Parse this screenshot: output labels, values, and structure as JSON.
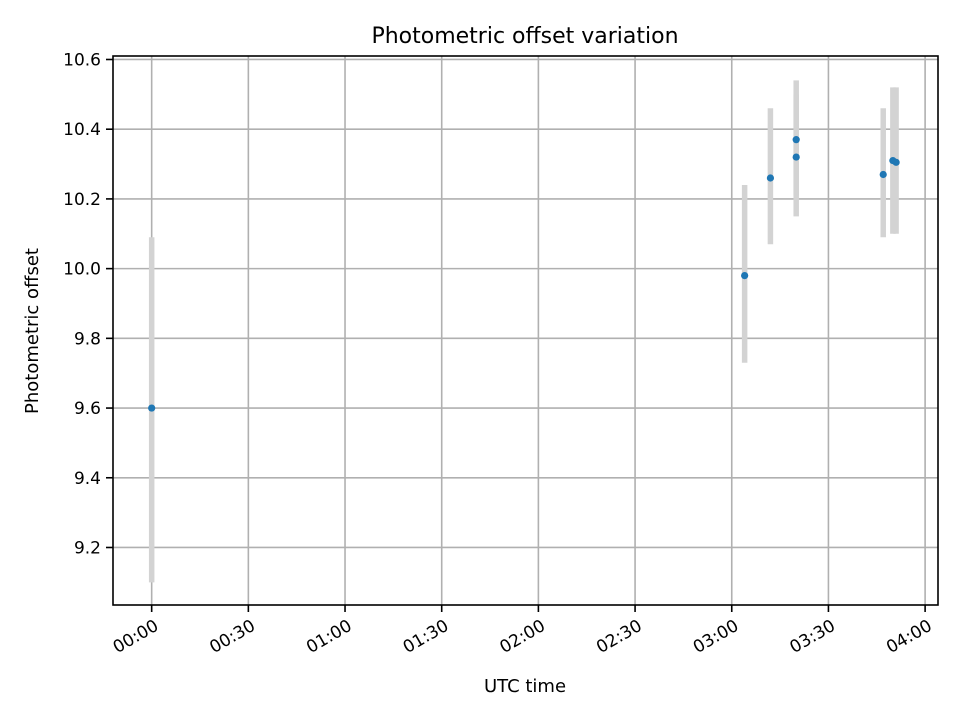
{
  "chart_data": {
    "type": "scatter",
    "title": "Photometric offset variation",
    "xlabel": "UTC time",
    "ylabel": "Photometric offset",
    "x_is_time": true,
    "x_unit": "minutes",
    "xlim": [
      "23:48",
      "04:04"
    ],
    "ylim": [
      9.035,
      10.61
    ],
    "x_ticks": [
      {
        "value": "00:00",
        "label": "00:00"
      },
      {
        "value": "00:30",
        "label": "00:30"
      },
      {
        "value": "01:00",
        "label": "01:00"
      },
      {
        "value": "01:30",
        "label": "01:30"
      },
      {
        "value": "02:00",
        "label": "02:00"
      },
      {
        "value": "02:30",
        "label": "02:30"
      },
      {
        "value": "03:00",
        "label": "03:00"
      },
      {
        "value": "03:30",
        "label": "03:30"
      },
      {
        "value": "04:00",
        "label": "04:00"
      }
    ],
    "y_ticks": [
      {
        "value": 9.2,
        "label": "9.2"
      },
      {
        "value": 9.4,
        "label": "9.4"
      },
      {
        "value": 9.6,
        "label": "9.6"
      },
      {
        "value": 9.8,
        "label": "9.8"
      },
      {
        "value": 10.0,
        "label": "10.0"
      },
      {
        "value": 10.2,
        "label": "10.2"
      },
      {
        "value": 10.4,
        "label": "10.4"
      },
      {
        "value": 10.6,
        "label": "10.6"
      }
    ],
    "grid": true,
    "colors": {
      "marker": "#1f77b4",
      "errorbar": "#d3d3d3",
      "grid": "#b0b0b0"
    },
    "points": [
      {
        "x": "00:00",
        "y": 9.6,
        "ymin": 9.1,
        "ymax": 10.09
      },
      {
        "x": "03:04",
        "y": 9.98,
        "ymin": 9.73,
        "ymax": 10.24
      },
      {
        "x": "03:12",
        "y": 10.26,
        "ymin": 10.07,
        "ymax": 10.46
      },
      {
        "x": "03:20",
        "y": 10.37,
        "ymin": 10.21,
        "ymax": 10.54
      },
      {
        "x": "03:20",
        "y": 10.32,
        "ymin": 10.15,
        "ymax": 10.5
      },
      {
        "x": "03:47",
        "y": 10.27,
        "ymin": 10.09,
        "ymax": 10.46
      },
      {
        "x": "03:50",
        "y": 10.31,
        "ymin": 10.1,
        "ymax": 10.52
      },
      {
        "x": "03:51",
        "y": 10.305,
        "ymin": 10.1,
        "ymax": 10.52
      }
    ]
  }
}
